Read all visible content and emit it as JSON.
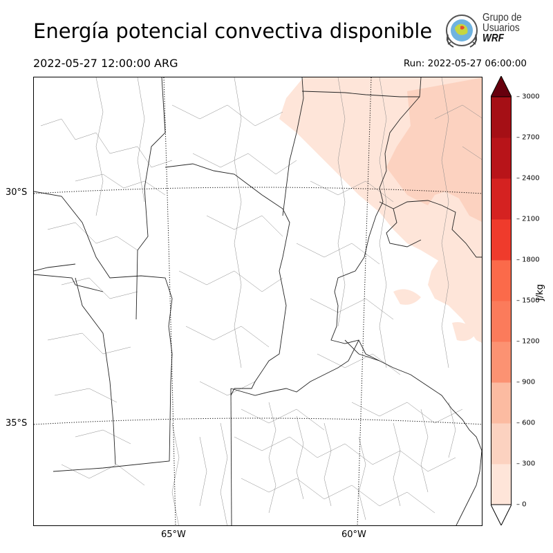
{
  "header": {
    "title": "Energía potencial convectiva disponible",
    "valid_time": "2022-05-27 12:00:00 ARG",
    "run_time": "Run: 2022-05-27 06:00:00"
  },
  "logo": {
    "line1": "Grupo de",
    "line2": "Usuarios",
    "line3": "WRF"
  },
  "axes": {
    "lat_labels": [
      "30°S",
      "35°S"
    ],
    "lon_labels": [
      "65°W",
      "60°W"
    ]
  },
  "colorbar": {
    "unit": "J/kg",
    "ticks": [
      "0",
      "300",
      "600",
      "900",
      "1200",
      "1500",
      "1800",
      "2100",
      "2400",
      "2700",
      "3000"
    ],
    "colors": [
      "#fee5d9",
      "#fcd2c0",
      "#fcbba1",
      "#fc9272",
      "#fb7b5b",
      "#fb6a4a",
      "#ef3b2c",
      "#d52221",
      "#b81419",
      "#a50f15",
      "#67000d"
    ]
  },
  "field": {
    "name": "CAPE",
    "levels_present": [
      "0-300",
      "300-600"
    ]
  }
}
